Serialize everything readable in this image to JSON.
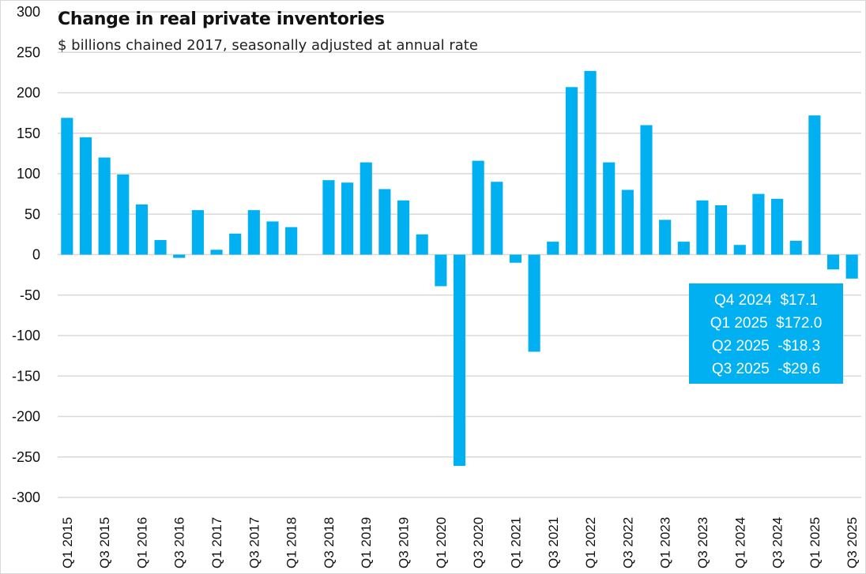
{
  "chart_data": {
    "type": "bar",
    "title": "Change in real private inventories",
    "subtitle": "$ billions chained 2017, seasonally adjusted at annual rate",
    "xlabel": "",
    "ylabel": "",
    "ylim": [
      -300,
      300
    ],
    "yticks": [
      300,
      250,
      200,
      150,
      100,
      50,
      0,
      -50,
      -100,
      -150,
      -200,
      -250,
      -300
    ],
    "grid": true,
    "legend": "none",
    "bar_color": "#00b0f0",
    "categories": [
      "Q1 2015",
      "Q2 2015",
      "Q3 2015",
      "Q4 2015",
      "Q1 2016",
      "Q2 2016",
      "Q3 2016",
      "Q4 2016",
      "Q1 2017",
      "Q2 2017",
      "Q3 2017",
      "Q4 2017",
      "Q1 2018",
      "Q2 2018",
      "Q3 2018",
      "Q4 2018",
      "Q1 2019",
      "Q2 2019",
      "Q3 2019",
      "Q4 2019",
      "Q1 2020",
      "Q2 2020",
      "Q3 2020",
      "Q4 2020",
      "Q1 2021",
      "Q2 2021",
      "Q3 2021",
      "Q4 2021",
      "Q1 2022",
      "Q2 2022",
      "Q3 2022",
      "Q4 2022",
      "Q1 2023",
      "Q2 2023",
      "Q3 2023",
      "Q4 2023",
      "Q1 2024",
      "Q2 2024",
      "Q3 2024",
      "Q4 2024",
      "Q1 2025",
      "Q2 2025",
      "Q3 2025"
    ],
    "tick_labels": [
      "Q1 2015",
      "Q3 2015",
      "Q1 2016",
      "Q3 2016",
      "Q1 2017",
      "Q3 2017",
      "Q1 2018",
      "Q3 2018",
      "Q1 2019",
      "Q3 2019",
      "Q1 2020",
      "Q3 2020",
      "Q1 2021",
      "Q3 2021",
      "Q1 2022",
      "Q3 2022",
      "Q1 2023",
      "Q3 2023",
      "Q1 2024",
      "Q3 2024",
      "Q1 2025",
      "Q3 2025"
    ],
    "values": [
      169,
      145,
      120,
      99,
      62,
      18,
      -4,
      55,
      6,
      26,
      55,
      41,
      34,
      0,
      92,
      89,
      114,
      81,
      67,
      25,
      -39,
      -261,
      116,
      90,
      -10,
      -120,
      16,
      207,
      227,
      114,
      80,
      160,
      43,
      16,
      67,
      61,
      12,
      75,
      69,
      17.1,
      172.0,
      -18.3,
      -29.6
    ],
    "annotations": [
      "Q4 2024  $17.1",
      "Q1 2025  $172.0",
      "Q2 2025  -$18.3",
      "Q3 2025  -$29.6"
    ]
  }
}
